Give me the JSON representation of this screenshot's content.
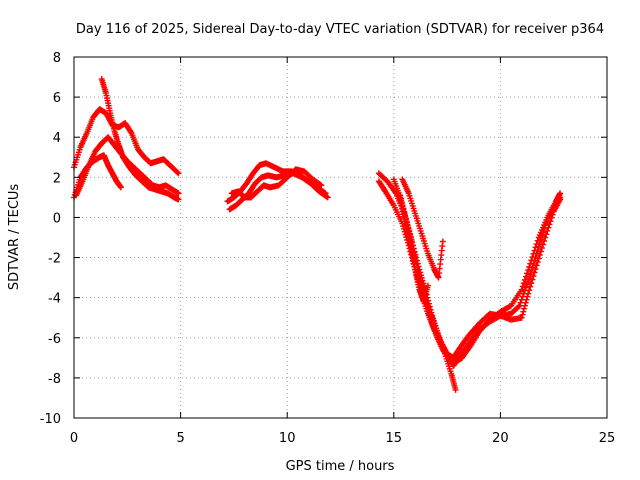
{
  "chart_data": {
    "type": "scatter",
    "title": "Day 116 of 2025, Sidereal Day-to-day VTEC variation (SDTVAR) for receiver p364",
    "xlabel": "GPS time / hours",
    "ylabel": "SDTVAR / TECUs",
    "xlim": [
      0,
      25
    ],
    "ylim": [
      -10,
      8
    ],
    "xticks": [
      0,
      5,
      10,
      15,
      20,
      25
    ],
    "yticks": [
      -10,
      -8,
      -6,
      -4,
      -2,
      0,
      2,
      4,
      6,
      8
    ],
    "xtick_labels": [
      "0",
      "5",
      "10",
      "15",
      "20",
      "25"
    ],
    "ytick_labels": [
      "-10",
      "-8",
      "-6",
      "-4",
      "-2",
      "0",
      "2",
      "4",
      "6",
      "8"
    ],
    "grid": true,
    "marker": "+",
    "color": "#ff0000",
    "series": [
      {
        "name": "s1",
        "x": [
          0.0,
          0.3,
          0.6,
          0.9,
          1.2,
          1.5,
          1.8,
          2.1,
          2.4,
          2.7,
          3.0,
          3.3,
          3.6,
          3.9,
          4.2,
          4.5,
          4.9
        ],
        "y": [
          2.5,
          3.5,
          4.2,
          5.0,
          5.4,
          5.2,
          4.6,
          4.5,
          4.7,
          4.2,
          3.4,
          3.0,
          2.7,
          2.8,
          2.9,
          2.6,
          2.2
        ]
      },
      {
        "name": "s2",
        "x": [
          0.1,
          0.4,
          0.7,
          1.0,
          1.3,
          1.6,
          1.9,
          2.2,
          2.5,
          2.8,
          3.1,
          3.4,
          3.7,
          4.0,
          4.3,
          4.6,
          4.9
        ],
        "y": [
          1.1,
          1.8,
          2.6,
          3.3,
          3.7,
          4.0,
          3.6,
          3.2,
          2.8,
          2.5,
          2.2,
          1.9,
          1.6,
          1.5,
          1.6,
          1.4,
          1.2
        ]
      },
      {
        "name": "s3",
        "x": [
          0.0,
          0.3,
          0.6,
          0.9,
          1.2,
          1.4,
          1.6,
          1.8,
          2.0,
          2.2
        ],
        "y": [
          1.0,
          2.0,
          2.5,
          2.8,
          3.0,
          3.1,
          2.6,
          2.2,
          1.8,
          1.5
        ]
      },
      {
        "name": "s4",
        "x": [
          1.3,
          1.5,
          1.7,
          1.9,
          2.1,
          2.3,
          2.6,
          2.9,
          3.2,
          3.5,
          3.8,
          4.1,
          4.4,
          4.7,
          4.9
        ],
        "y": [
          6.9,
          6.2,
          5.2,
          4.3,
          3.6,
          3.0,
          2.5,
          2.1,
          1.8,
          1.5,
          1.4,
          1.3,
          1.2,
          1.0,
          0.9
        ]
      },
      {
        "name": "s5",
        "x": [
          7.2,
          7.5,
          7.8,
          8.1,
          8.4,
          8.7,
          9.0,
          9.4,
          9.8,
          10.2,
          10.6,
          11.0,
          11.4,
          11.8
        ],
        "y": [
          0.8,
          1.0,
          1.3,
          1.7,
          2.2,
          2.6,
          2.7,
          2.5,
          2.3,
          2.3,
          2.1,
          1.8,
          1.5,
          1.2
        ]
      },
      {
        "name": "s6",
        "x": [
          7.3,
          7.6,
          7.9,
          8.2,
          8.5,
          8.8,
          9.1,
          9.5,
          9.9,
          10.3,
          10.7,
          11.1,
          11.5,
          11.9
        ],
        "y": [
          0.4,
          0.6,
          0.9,
          1.2,
          1.7,
          2.0,
          2.1,
          2.0,
          2.1,
          2.2,
          2.0,
          1.7,
          1.3,
          1.0
        ]
      },
      {
        "name": "s7",
        "x": [
          7.4,
          7.7,
          8.0,
          8.3,
          8.6,
          8.9,
          9.2,
          9.6,
          10.0,
          10.4,
          10.8,
          11.2,
          11.6
        ],
        "y": [
          1.2,
          1.3,
          1.0,
          1.0,
          1.3,
          1.6,
          1.5,
          1.6,
          2.0,
          2.4,
          2.3,
          1.9,
          1.6
        ]
      },
      {
        "name": "s8",
        "x": [
          14.3,
          14.7,
          15.1,
          15.5,
          15.8,
          16.1,
          16.4,
          16.7,
          17.0,
          17.3,
          17.6,
          17.9,
          18.2,
          18.6,
          19.0,
          19.5,
          20.0,
          20.5,
          21.0,
          21.4,
          21.8,
          22.2,
          22.6,
          22.8
        ],
        "y": [
          2.2,
          1.8,
          1.2,
          0.2,
          -1.0,
          -2.5,
          -3.8,
          -5.0,
          -5.9,
          -6.6,
          -7.0,
          -7.2,
          -7.0,
          -6.4,
          -5.7,
          -5.1,
          -4.7,
          -4.4,
          -3.6,
          -2.3,
          -1.0,
          0.0,
          0.8,
          1.2
        ]
      },
      {
        "name": "s9",
        "x": [
          14.3,
          14.6,
          15.0,
          15.4,
          15.7,
          16.0,
          16.3,
          16.6,
          16.9,
          17.2,
          17.5,
          17.8,
          18.1,
          18.5,
          19.0,
          19.5,
          20.0,
          20.5,
          20.9,
          21.3,
          21.7,
          22.1,
          22.5,
          22.8
        ],
        "y": [
          1.8,
          1.3,
          0.6,
          -0.3,
          -1.4,
          -2.6,
          -3.8,
          -4.8,
          -5.6,
          -6.2,
          -6.8,
          -7.4,
          -6.9,
          -6.3,
          -5.6,
          -5.2,
          -4.9,
          -4.8,
          -4.4,
          -3.2,
          -1.8,
          -0.4,
          0.5,
          1.0
        ]
      },
      {
        "name": "s10",
        "x": [
          15.2,
          15.5,
          15.8,
          16.0,
          16.3,
          16.6,
          16.9,
          17.2,
          17.5,
          17.8,
          18.1,
          18.5,
          19.0,
          19.5,
          20.0,
          20.5,
          21.0,
          21.3,
          21.7,
          22.1,
          22.5,
          22.8
        ],
        "y": [
          1.2,
          0.0,
          -1.5,
          -2.6,
          -3.6,
          -4.4,
          -5.3,
          -6.2,
          -6.8,
          -7.0,
          -6.5,
          -5.9,
          -5.3,
          -4.8,
          -4.9,
          -5.1,
          -5.0,
          -3.8,
          -2.4,
          -1.0,
          0.3,
          0.9
        ]
      },
      {
        "name": "s11",
        "x": [
          15.0,
          15.3,
          15.6,
          15.9,
          16.2,
          16.5,
          16.8,
          17.1,
          17.4,
          17.7,
          17.9
        ],
        "y": [
          1.9,
          1.0,
          -0.2,
          -1.4,
          -2.6,
          -3.7,
          -4.9,
          -5.9,
          -6.8,
          -7.8,
          -8.6
        ]
      },
      {
        "name": "s12",
        "x": [
          15.4,
          15.7,
          16.0,
          16.3,
          16.6,
          16.9,
          17.1,
          17.3
        ],
        "y": [
          1.9,
          1.2,
          0.2,
          -0.8,
          -1.8,
          -2.6,
          -3.0,
          -1.2
        ]
      },
      {
        "name": "s13",
        "x": [
          15.3,
          15.6,
          15.8,
          16.0,
          16.2,
          16.4,
          16.6
        ],
        "y": [
          1.1,
          -0.2,
          -1.4,
          -2.6,
          -3.6,
          -4.2,
          -3.4
        ]
      }
    ]
  }
}
